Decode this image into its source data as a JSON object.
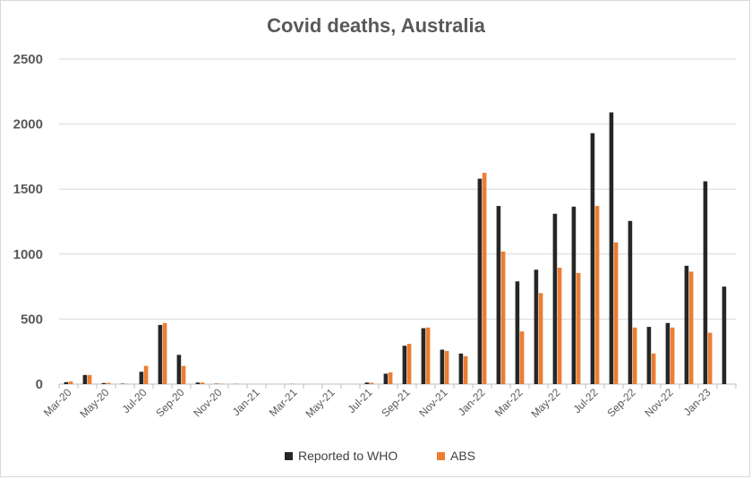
{
  "chart_data": {
    "type": "bar",
    "title": "Covid deaths, Australia",
    "xlabel": "",
    "ylabel": "",
    "ylim": [
      0,
      2500
    ],
    "yticks": [
      0,
      500,
      1000,
      1500,
      2000,
      2500
    ],
    "grid": true,
    "legend_position": "bottom",
    "categories": [
      "Mar-20",
      "Apr-20",
      "May-20",
      "Jun-20",
      "Jul-20",
      "Aug-20",
      "Sep-20",
      "Oct-20",
      "Nov-20",
      "Dec-20",
      "Jan-21",
      "Feb-21",
      "Mar-21",
      "Apr-21",
      "May-21",
      "Jun-21",
      "Jul-21",
      "Aug-21",
      "Sep-21",
      "Oct-21",
      "Nov-21",
      "Dec-21",
      "Jan-22",
      "Feb-22",
      "Mar-22",
      "Apr-22",
      "May-22",
      "Jun-22",
      "Jul-22",
      "Aug-22",
      "Sep-22",
      "Oct-22",
      "Nov-22",
      "Dec-22",
      "Jan-23",
      "Feb-23"
    ],
    "tick_labels": [
      "Mar-20",
      "May-20",
      "Jul-20",
      "Sep-20",
      "Nov-20",
      "Jan-21",
      "Mar-21",
      "May-21",
      "Jul-21",
      "Sep-21",
      "Nov-21",
      "Jan-22",
      "Mar-22",
      "May-22",
      "Jul-22",
      "Sep-22",
      "Nov-22",
      "Jan-23"
    ],
    "series": [
      {
        "name": "Reported to WHO",
        "color": "#262626",
        "values": [
          15,
          70,
          8,
          3,
          95,
          455,
          225,
          12,
          3,
          1,
          0,
          0,
          1,
          0,
          0,
          0,
          12,
          80,
          295,
          430,
          265,
          235,
          1580,
          1370,
          790,
          880,
          1310,
          1365,
          1930,
          2090,
          1255,
          440,
          470,
          910,
          1560,
          750
        ]
      },
      {
        "name": "ABS",
        "color": "#ed7d31",
        "values": [
          20,
          70,
          10,
          3,
          140,
          470,
          140,
          12,
          3,
          1,
          0,
          0,
          1,
          0,
          0,
          0,
          10,
          90,
          310,
          435,
          255,
          215,
          1625,
          1020,
          405,
          700,
          895,
          855,
          1370,
          1090,
          435,
          235,
          435,
          865,
          395,
          null
        ]
      }
    ]
  }
}
